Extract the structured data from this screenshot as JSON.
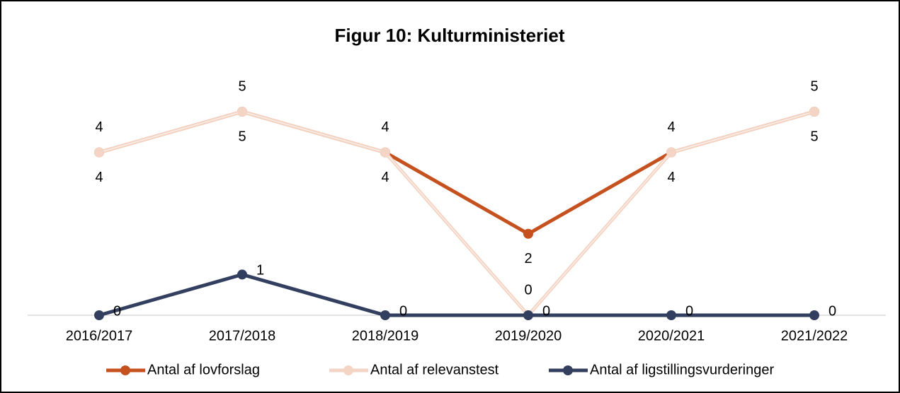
{
  "chart_data": {
    "type": "line",
    "title": "Figur 10: Kulturministeriet",
    "categories": [
      "2016/2017",
      "2017/2018",
      "2018/2019",
      "2019/2020",
      "2020/2021",
      "2021/2022"
    ],
    "series": [
      {
        "name": "Antal af lovforslag",
        "color": "#c5511f",
        "values": [
          4,
          5,
          4,
          2,
          4,
          5
        ]
      },
      {
        "name": "Antal af relevanstest",
        "color": "#f4d4c4",
        "values": [
          4,
          5,
          4,
          0,
          4,
          5
        ]
      },
      {
        "name": "Antal af ligstillingsvurderinger",
        "color": "#333f5f",
        "values": [
          0,
          1,
          0,
          0,
          0,
          0
        ]
      }
    ],
    "ylim": [
      0,
      5
    ],
    "legend": "bottom"
  }
}
